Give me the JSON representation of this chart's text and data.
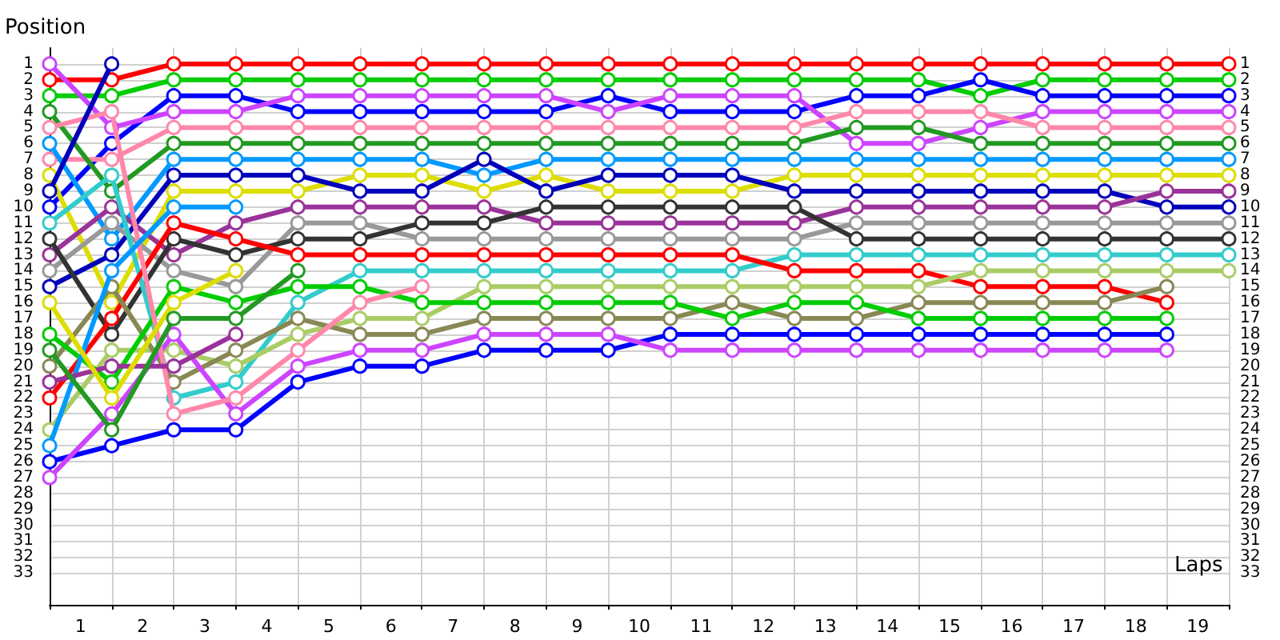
{
  "chart_data": {
    "type": "line",
    "xlabel": "Laps",
    "ylabel": "Position",
    "x": [
      0,
      1,
      2,
      3,
      4,
      5,
      6,
      7,
      8,
      9,
      10,
      11,
      12,
      13,
      14,
      15,
      16,
      17,
      18,
      19
    ],
    "xlim": [
      0,
      19
    ],
    "xticks": [
      {
        "value": 0,
        "label": null
      },
      {
        "value": 0.5,
        "label": "1"
      },
      {
        "value": 1,
        "label": null
      },
      {
        "value": 1.5,
        "label": "2"
      },
      {
        "value": 2,
        "label": null
      },
      {
        "value": 2.5,
        "label": "3"
      },
      {
        "value": 3,
        "label": null
      },
      {
        "value": 3.5,
        "label": "4"
      },
      {
        "value": 4,
        "label": null
      },
      {
        "value": 4.5,
        "label": "5"
      },
      {
        "value": 5,
        "label": null
      },
      {
        "value": 5.5,
        "label": "6"
      },
      {
        "value": 6,
        "label": null
      },
      {
        "value": 6.5,
        "label": "7"
      },
      {
        "value": 7,
        "label": null
      },
      {
        "value": 7.5,
        "label": "8"
      },
      {
        "value": 8,
        "label": null
      },
      {
        "value": 8.5,
        "label": "9"
      },
      {
        "value": 9,
        "label": null
      },
      {
        "value": 9.5,
        "label": "10"
      },
      {
        "value": 10,
        "label": null
      },
      {
        "value": 10.5,
        "label": "11"
      },
      {
        "value": 11,
        "label": null
      },
      {
        "value": 11.5,
        "label": "12"
      },
      {
        "value": 12,
        "label": null
      },
      {
        "value": 12.5,
        "label": "13"
      },
      {
        "value": 13,
        "label": null
      },
      {
        "value": 13.5,
        "label": "14"
      },
      {
        "value": 14,
        "label": null
      },
      {
        "value": 14.5,
        "label": "15"
      },
      {
        "value": 15,
        "label": null
      },
      {
        "value": 15.5,
        "label": "16"
      },
      {
        "value": 16,
        "label": null
      },
      {
        "value": 16.5,
        "label": "17"
      },
      {
        "value": 17,
        "label": null
      },
      {
        "value": 17.5,
        "label": "18"
      },
      {
        "value": 18,
        "label": null
      },
      {
        "value": 18.5,
        "label": "19"
      },
      {
        "value": 19,
        "label": null
      }
    ],
    "ylim": [
      35,
      0
    ],
    "yticks": [
      1,
      2,
      3,
      4,
      5,
      6,
      7,
      8,
      9,
      10,
      11,
      12,
      13,
      14,
      15,
      16,
      17,
      18,
      19,
      20,
      21,
      22,
      23,
      24,
      25,
      26,
      27,
      28,
      29,
      30,
      31,
      32,
      33
    ],
    "y2lim": [
      35,
      0
    ],
    "y2ticks": [
      1,
      2,
      3,
      4,
      5,
      6,
      7,
      8,
      9,
      10,
      11,
      12,
      13,
      14,
      15,
      16,
      17,
      18,
      19,
      20,
      21,
      22,
      23,
      24,
      25,
      26,
      27,
      28,
      29,
      30,
      31,
      32,
      33
    ],
    "grid": true,
    "marker": "circle",
    "line_style": "solid",
    "series": [
      {
        "color": "#ff0000",
        "values": [
          2,
          2,
          1,
          1,
          1,
          1,
          1,
          1,
          1,
          1,
          1,
          1,
          1,
          1,
          1,
          1,
          1,
          1,
          1,
          1
        ]
      },
      {
        "color": "#00cc00",
        "values": [
          3,
          3,
          2,
          2,
          2,
          2,
          2,
          2,
          2,
          2,
          2,
          2,
          2,
          2,
          2,
          3,
          2,
          2,
          2,
          2
        ]
      },
      {
        "color": "#0000ff",
        "values": [
          10,
          6,
          3,
          3,
          4,
          4,
          4,
          4,
          4,
          3,
          4,
          4,
          4,
          3,
          3,
          2,
          3,
          3,
          3,
          3
        ]
      },
      {
        "color": "#cc44ff",
        "values": [
          1,
          5,
          4,
          4,
          3,
          3,
          3,
          3,
          3,
          4,
          3,
          3,
          3,
          6,
          6,
          5,
          4,
          4,
          4,
          4
        ]
      },
      {
        "color": "#ff88aa",
        "values": [
          7,
          7,
          5,
          5,
          5,
          5,
          5,
          5,
          5,
          5,
          5,
          5,
          5,
          4,
          4,
          4,
          5,
          5,
          5,
          5
        ]
      },
      {
        "color": "#229922",
        "values": [
          4,
          9,
          6,
          6,
          6,
          6,
          6,
          6,
          6,
          6,
          6,
          6,
          6,
          5,
          5,
          6,
          6,
          6,
          6,
          6
        ]
      },
      {
        "color": "#0099ff",
        "values": [
          6,
          12,
          7,
          7,
          7,
          7,
          7,
          8,
          7,
          7,
          7,
          7,
          7,
          7,
          7,
          7,
          7,
          7,
          7,
          7
        ]
      },
      {
        "color": "#dddd00",
        "values": [
          8,
          16,
          9,
          9,
          9,
          8,
          8,
          9,
          8,
          9,
          9,
          9,
          8,
          8,
          8,
          8,
          8,
          8,
          8,
          8
        ]
      },
      {
        "color": "#0000bb",
        "values": [
          15,
          13,
          8,
          8,
          8,
          9,
          9,
          7,
          9,
          8,
          8,
          8,
          9,
          9,
          9,
          9,
          9,
          9,
          10,
          10
        ]
      },
      {
        "color": "#993399",
        "values": [
          13,
          10,
          13,
          11,
          10,
          10,
          10,
          10,
          11,
          11,
          11,
          11,
          11,
          10,
          10,
          10,
          10,
          10,
          9,
          9
        ]
      },
      {
        "color": "#999999",
        "values": [
          14,
          11,
          14,
          15,
          11,
          11,
          12,
          12,
          12,
          12,
          12,
          12,
          12,
          11,
          11,
          11,
          11,
          11,
          11,
          11
        ]
      },
      {
        "color": "#333333",
        "values": [
          12,
          18,
          12,
          13,
          12,
          12,
          11,
          11,
          10,
          10,
          10,
          10,
          10,
          12,
          12,
          12,
          12,
          12,
          12,
          12
        ]
      },
      {
        "color": "#33cccc",
        "values": [
          11,
          8,
          22,
          21,
          16,
          14,
          14,
          14,
          14,
          14,
          14,
          14,
          13,
          13,
          13,
          13,
          13,
          13,
          13,
          13
        ]
      },
      {
        "color": "#ff0000",
        "values": [
          22,
          17,
          11,
          12,
          13,
          13,
          13,
          13,
          13,
          13,
          13,
          13,
          14,
          14,
          14,
          15,
          15,
          15,
          16,
          null
        ]
      },
      {
        "color": "#aacc66",
        "values": [
          24,
          19,
          19,
          20,
          18,
          17,
          17,
          15,
          15,
          15,
          15,
          15,
          15,
          15,
          15,
          14,
          14,
          14,
          14,
          14
        ]
      },
      {
        "color": "#888855",
        "values": [
          20,
          15,
          21,
          19,
          17,
          18,
          18,
          17,
          17,
          17,
          17,
          16,
          17,
          17,
          16,
          16,
          16,
          16,
          15,
          null
        ]
      },
      {
        "color": "#00cc00",
        "values": [
          18,
          21,
          15,
          16,
          15,
          15,
          16,
          16,
          16,
          16,
          16,
          17,
          16,
          16,
          17,
          17,
          17,
          17,
          17,
          null
        ]
      },
      {
        "color": "#0000ff",
        "values": [
          26,
          25,
          24,
          24,
          21,
          20,
          20,
          19,
          19,
          19,
          18,
          18,
          18,
          18,
          18,
          18,
          18,
          18,
          18,
          null
        ]
      },
      {
        "color": "#cc44ff",
        "values": [
          27,
          23,
          18,
          23,
          20,
          19,
          19,
          18,
          18,
          18,
          19,
          19,
          19,
          19,
          19,
          19,
          19,
          19,
          19,
          null
        ]
      },
      {
        "color": "#ff88aa",
        "values": [
          5,
          4,
          23,
          22,
          19,
          16,
          15,
          null,
          null,
          null,
          null,
          null,
          null,
          null,
          null,
          null,
          null,
          null,
          null,
          null
        ]
      },
      {
        "color": "#0000bb",
        "values": [
          9,
          1,
          null,
          null,
          null,
          null,
          null,
          null,
          null,
          null,
          null,
          null,
          null,
          null,
          null,
          null,
          null,
          null,
          null,
          null
        ]
      },
      {
        "color": "#0099ff",
        "values": [
          25,
          14,
          10,
          10,
          null,
          null,
          null,
          null,
          null,
          null,
          null,
          null,
          null,
          null,
          null,
          null,
          null,
          null,
          null,
          null
        ]
      },
      {
        "color": "#993399",
        "values": [
          21,
          20,
          20,
          18,
          null,
          null,
          null,
          null,
          null,
          null,
          null,
          null,
          null,
          null,
          null,
          null,
          null,
          null,
          null,
          null
        ]
      },
      {
        "color": "#dddd00",
        "values": [
          16,
          22,
          16,
          14,
          null,
          null,
          null,
          null,
          null,
          null,
          null,
          null,
          null,
          null,
          null,
          null,
          null,
          null,
          null,
          null
        ]
      },
      {
        "color": "#229922",
        "values": [
          19,
          24,
          17,
          17,
          14,
          null,
          null,
          null,
          null,
          null,
          null,
          null,
          null,
          null,
          null,
          null,
          null,
          null,
          null,
          null
        ]
      }
    ]
  }
}
